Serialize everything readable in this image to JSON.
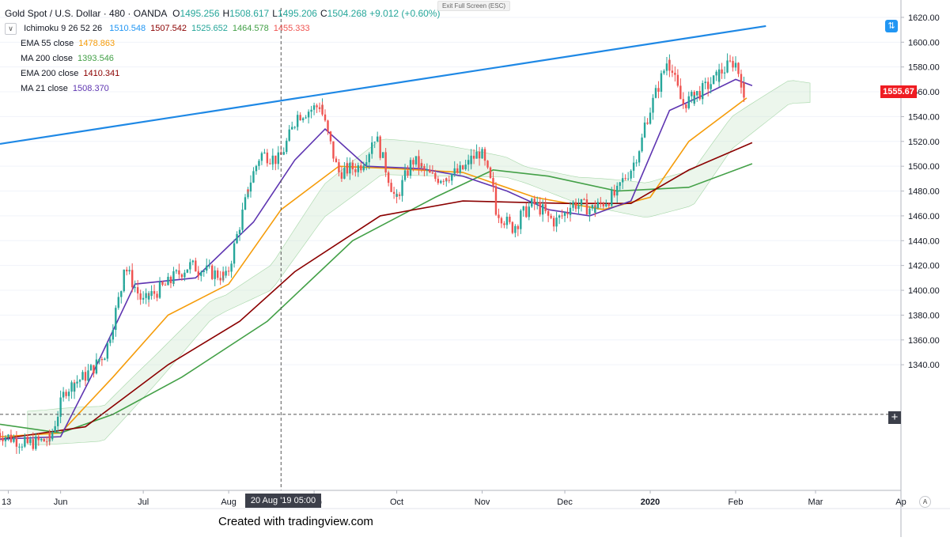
{
  "header": {
    "symbol": "Gold Spot / U.S. Dollar · 480 · OANDA",
    "ohlc": [
      {
        "label": "O",
        "value": "1495.256"
      },
      {
        "label": "H",
        "value": "1508.617"
      },
      {
        "label": "L",
        "value": "1495.206"
      },
      {
        "label": "C",
        "value": "1504.268"
      }
    ],
    "change": "+9.012 (+0.60%)",
    "up_color": "#26a69a"
  },
  "indicators": {
    "ichimoku": {
      "name": "Ichimoku 9 26 52 26",
      "values": [
        {
          "v": "1510.548",
          "color": "#2196f3"
        },
        {
          "v": "1507.542",
          "color": "#8b0000"
        },
        {
          "v": "1525.652",
          "color": "#26a69a"
        },
        {
          "v": "1464.578",
          "color": "#43a047"
        },
        {
          "v": "1455.333",
          "color": "#ef5350"
        }
      ]
    },
    "items": [
      {
        "name": "EMA 55 close",
        "value": "1478.863",
        "color": "#f59c0a"
      },
      {
        "name": "MA 200 close",
        "value": "1393.546",
        "color": "#43a047"
      },
      {
        "name": "EMA 200 close",
        "value": "1410.341",
        "color": "#8b0000"
      },
      {
        "name": "MA 21 close",
        "value": "1508.370",
        "color": "#5e35b1"
      }
    ]
  },
  "toolbar": {
    "exit_fullscreen": "Exit Full Screen (ESC)",
    "auto_scale": "A"
  },
  "crosshair": {
    "date_label": "20 Aug '19   05:00"
  },
  "last_price": {
    "value": "1555.67",
    "color": "#ef1c22"
  },
  "footer": {
    "credit": "Created with tradingview.com"
  },
  "chart_data": {
    "type": "candlestick",
    "title": "Gold Spot / U.S. Dollar · 480 · OANDA",
    "y_axis": {
      "ticks": [
        1340,
        1360,
        1380,
        1400,
        1420,
        1440,
        1460,
        1480,
        1500,
        1520,
        1540,
        1560,
        1580,
        1600,
        1620
      ],
      "tick_labels": [
        "1340.00",
        "1360.00",
        "1380.00",
        "1400.00",
        "1420.00",
        "1440.00",
        "1460.00",
        "1480.00",
        "1500.00",
        "1520.00",
        "1540.00",
        "1560.00",
        "1580.00",
        "1600.00",
        "1620.00"
      ],
      "range": [
        1240,
        1625
      ]
    },
    "x_axis": {
      "labels": [
        "13",
        "Jun",
        "Jul",
        "Aug",
        "Sep",
        "Oct",
        "Nov",
        "Dec",
        "2020",
        "Feb",
        "Mar",
        "Ap"
      ],
      "range": [
        "2019-05-10",
        "2020-04-01"
      ]
    },
    "candles_key_points": [
      [
        "2019-05-10",
        1285
      ],
      [
        "2019-05-20",
        1276
      ],
      [
        "2019-05-29",
        1280
      ],
      [
        "2019-06-03",
        1320
      ],
      [
        "2019-06-10",
        1330
      ],
      [
        "2019-06-18",
        1350
      ],
      [
        "2019-06-25",
        1420
      ],
      [
        "2019-07-01",
        1390
      ],
      [
        "2019-07-10",
        1405
      ],
      [
        "2019-07-18",
        1420
      ],
      [
        "2019-07-25",
        1415
      ],
      [
        "2019-08-01",
        1410
      ],
      [
        "2019-08-07",
        1470
      ],
      [
        "2019-08-13",
        1510
      ],
      [
        "2019-08-20",
        1505
      ],
      [
        "2019-08-26",
        1540
      ],
      [
        "2019-09-04",
        1550
      ],
      [
        "2019-09-10",
        1495
      ],
      [
        "2019-09-18",
        1500
      ],
      [
        "2019-09-24",
        1525
      ],
      [
        "2019-10-01",
        1470
      ],
      [
        "2019-10-07",
        1505
      ],
      [
        "2019-10-15",
        1490
      ],
      [
        "2019-10-24",
        1495
      ],
      [
        "2019-11-01",
        1512
      ],
      [
        "2019-11-07",
        1465
      ],
      [
        "2019-11-12",
        1450
      ],
      [
        "2019-11-20",
        1470
      ],
      [
        "2019-11-28",
        1455
      ],
      [
        "2019-12-05",
        1470
      ],
      [
        "2019-12-12",
        1465
      ],
      [
        "2019-12-20",
        1478
      ],
      [
        "2019-12-26",
        1500
      ],
      [
        "2020-01-03",
        1555
      ],
      [
        "2020-01-08",
        1590
      ],
      [
        "2020-01-13",
        1550
      ],
      [
        "2020-01-20",
        1560
      ],
      [
        "2020-01-27",
        1575
      ],
      [
        "2020-02-01",
        1585
      ],
      [
        "2020-02-05",
        1555
      ]
    ],
    "series": [
      {
        "name": "EMA 55 close",
        "color": "#f59c0a",
        "points": [
          [
            "2019-05-10",
            1282
          ],
          [
            "2019-06-01",
            1285
          ],
          [
            "2019-06-20",
            1330
          ],
          [
            "2019-07-10",
            1380
          ],
          [
            "2019-08-01",
            1405
          ],
          [
            "2019-08-20",
            1465
          ],
          [
            "2019-09-10",
            1500
          ],
          [
            "2019-10-01",
            1498
          ],
          [
            "2019-10-25",
            1495
          ],
          [
            "2019-11-20",
            1475
          ],
          [
            "2019-12-15",
            1465
          ],
          [
            "2020-01-01",
            1475
          ],
          [
            "2020-01-15",
            1520
          ],
          [
            "2020-02-05",
            1555
          ]
        ]
      },
      {
        "name": "MA 200 close",
        "color": "#43a047",
        "points": [
          [
            "2019-05-10",
            1292
          ],
          [
            "2019-06-01",
            1285
          ],
          [
            "2019-06-20",
            1300
          ],
          [
            "2019-07-15",
            1330
          ],
          [
            "2019-08-15",
            1375
          ],
          [
            "2019-09-15",
            1440
          ],
          [
            "2019-10-15",
            1475
          ],
          [
            "2019-11-05",
            1497
          ],
          [
            "2019-11-25",
            1492
          ],
          [
            "2019-12-20",
            1480
          ],
          [
            "2020-01-15",
            1483
          ],
          [
            "2020-02-07",
            1502
          ]
        ]
      },
      {
        "name": "EMA 200 close",
        "color": "#8b0000",
        "points": [
          [
            "2019-05-10",
            1280
          ],
          [
            "2019-06-10",
            1290
          ],
          [
            "2019-07-10",
            1340
          ],
          [
            "2019-08-05",
            1375
          ],
          [
            "2019-08-25",
            1415
          ],
          [
            "2019-09-25",
            1460
          ],
          [
            "2019-10-25",
            1472
          ],
          [
            "2019-12-01",
            1470
          ],
          [
            "2019-12-25",
            1470
          ],
          [
            "2020-01-15",
            1497
          ],
          [
            "2020-02-07",
            1519
          ]
        ]
      },
      {
        "name": "MA 21 close",
        "color": "#5e35b1",
        "points": [
          [
            "2019-05-10",
            1280
          ],
          [
            "2019-06-01",
            1282
          ],
          [
            "2019-06-12",
            1330
          ],
          [
            "2019-06-28",
            1405
          ],
          [
            "2019-07-20",
            1410
          ],
          [
            "2019-08-10",
            1455
          ],
          [
            "2019-08-25",
            1505
          ],
          [
            "2019-09-05",
            1530
          ],
          [
            "2019-09-20",
            1500
          ],
          [
            "2019-10-10",
            1498
          ],
          [
            "2019-10-25",
            1492
          ],
          [
            "2019-11-10",
            1480
          ],
          [
            "2019-11-25",
            1465
          ],
          [
            "2019-12-10",
            1460
          ],
          [
            "2019-12-25",
            1472
          ],
          [
            "2020-01-08",
            1545
          ],
          [
            "2020-01-20",
            1557
          ],
          [
            "2020-02-01",
            1570
          ],
          [
            "2020-02-07",
            1565
          ]
        ]
      }
    ],
    "trendline": {
      "color": "#1e88e5",
      "from": [
        "2019-05-10",
        1518
      ],
      "to": [
        "2020-02-12",
        1613
      ]
    },
    "crosshair": {
      "x": "2019-08-20",
      "y": 1300
    }
  }
}
